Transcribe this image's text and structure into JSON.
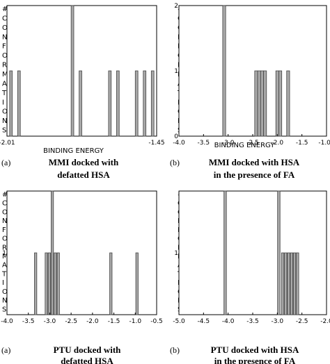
{
  "ylabel_letters": [
    "#",
    "C",
    "O",
    "N",
    "F",
    "O",
    "R",
    "M",
    "A",
    "T",
    "I",
    "O",
    "N",
    "S"
  ],
  "chart_data": [
    {
      "type": "bar",
      "panel_letter": "(a)",
      "caption": [
        "MMI docked with",
        "defatted HSA"
      ],
      "xlabel": "BINDING ENERGY",
      "xlim": [
        -2.01,
        -1.45
      ],
      "ylim": [
        0,
        2
      ],
      "xticks": [
        -2.01,
        -1.45
      ],
      "xtick_labels": [
        "-2.01",
        "-1.45"
      ],
      "yticks": [],
      "ytick_labels": [],
      "bar_width": 0.01,
      "bars": [
        {
          "x": -1.995,
          "y": 1
        },
        {
          "x": -1.965,
          "y": 1
        },
        {
          "x": -1.765,
          "y": 2
        },
        {
          "x": -1.735,
          "y": 1
        },
        {
          "x": -1.625,
          "y": 1
        },
        {
          "x": -1.595,
          "y": 1
        },
        {
          "x": -1.525,
          "y": 1
        },
        {
          "x": -1.495,
          "y": 1
        },
        {
          "x": -1.465,
          "y": 1
        }
      ]
    },
    {
      "type": "bar",
      "panel_letter": "(b)",
      "caption": [
        "MMI docked with HSA",
        "in the presence of FA"
      ],
      "xlabel": "BINDING ENERGY",
      "xlim": [
        -4.0,
        -1.0
      ],
      "ylim": [
        0,
        2
      ],
      "xticks": [
        -4.0,
        -3.5,
        -3.0,
        -2.5,
        -2.0,
        -1.5,
        -1.0
      ],
      "xtick_labels": [
        "-4.0",
        "-3.5",
        "-3.0",
        "-2.5",
        "-2.0",
        "-1.5",
        "-1.00"
      ],
      "yticks": [
        0,
        1,
        2
      ],
      "ytick_labels": [
        "0",
        "1",
        "2"
      ],
      "bar_width": 0.06,
      "bars": [
        {
          "x": -3.08,
          "y": 2
        },
        {
          "x": -2.43,
          "y": 1
        },
        {
          "x": -2.37,
          "y": 1
        },
        {
          "x": -2.31,
          "y": 1
        },
        {
          "x": -2.25,
          "y": 1
        },
        {
          "x": -2.0,
          "y": 1
        },
        {
          "x": -1.94,
          "y": 1
        },
        {
          "x": -1.78,
          "y": 1
        }
      ]
    },
    {
      "type": "bar",
      "panel_letter": "(a)",
      "caption": [
        "PTU docked with",
        "defatted HSA"
      ],
      "xlabel": "",
      "xlim": [
        -4.0,
        -0.5
      ],
      "ylim": [
        0,
        2
      ],
      "xticks": [
        -4.0,
        -3.5,
        -3.0,
        -2.5,
        -2.0,
        -1.5,
        -1.0,
        -0.5
      ],
      "xtick_labels": [
        "-4.0",
        "-3.5",
        "-3.0",
        "-2.5",
        "-2.0",
        "-1.5",
        "-1.0",
        "-0.5"
      ],
      "yticks": [
        1
      ],
      "ytick_labels": [
        "1"
      ],
      "bar_width": 0.055,
      "bars": [
        {
          "x": -3.33,
          "y": 1
        },
        {
          "x": -3.08,
          "y": 1
        },
        {
          "x": -3.01,
          "y": 1
        },
        {
          "x": -2.94,
          "y": 2
        },
        {
          "x": -2.87,
          "y": 1
        },
        {
          "x": -2.8,
          "y": 1
        },
        {
          "x": -1.57,
          "y": 1
        },
        {
          "x": -0.96,
          "y": 1
        }
      ]
    },
    {
      "type": "bar",
      "panel_letter": "(b)",
      "caption": [
        "PTU docked with HSA",
        "in the presence of FA"
      ],
      "xlabel": "",
      "xlim": [
        -5.0,
        -2.0
      ],
      "ylim": [
        0,
        2
      ],
      "xticks": [
        -5.0,
        -4.5,
        -4.0,
        -3.5,
        -3.0,
        -2.5,
        -2.0
      ],
      "xtick_labels": [
        "-5.0",
        "-4.5",
        "-4.0",
        "-3.5",
        "-3.0",
        "-2.5",
        "-2.0"
      ],
      "yticks": [
        1
      ],
      "ytick_labels": [
        "1"
      ],
      "bar_width": 0.05,
      "bars": [
        {
          "x": -4.06,
          "y": 2
        },
        {
          "x": -2.97,
          "y": 2
        },
        {
          "x": -2.89,
          "y": 1
        },
        {
          "x": -2.83,
          "y": 1
        },
        {
          "x": -2.77,
          "y": 1
        },
        {
          "x": -2.71,
          "y": 1
        },
        {
          "x": -2.65,
          "y": 1
        },
        {
          "x": -2.59,
          "y": 1
        }
      ]
    }
  ]
}
